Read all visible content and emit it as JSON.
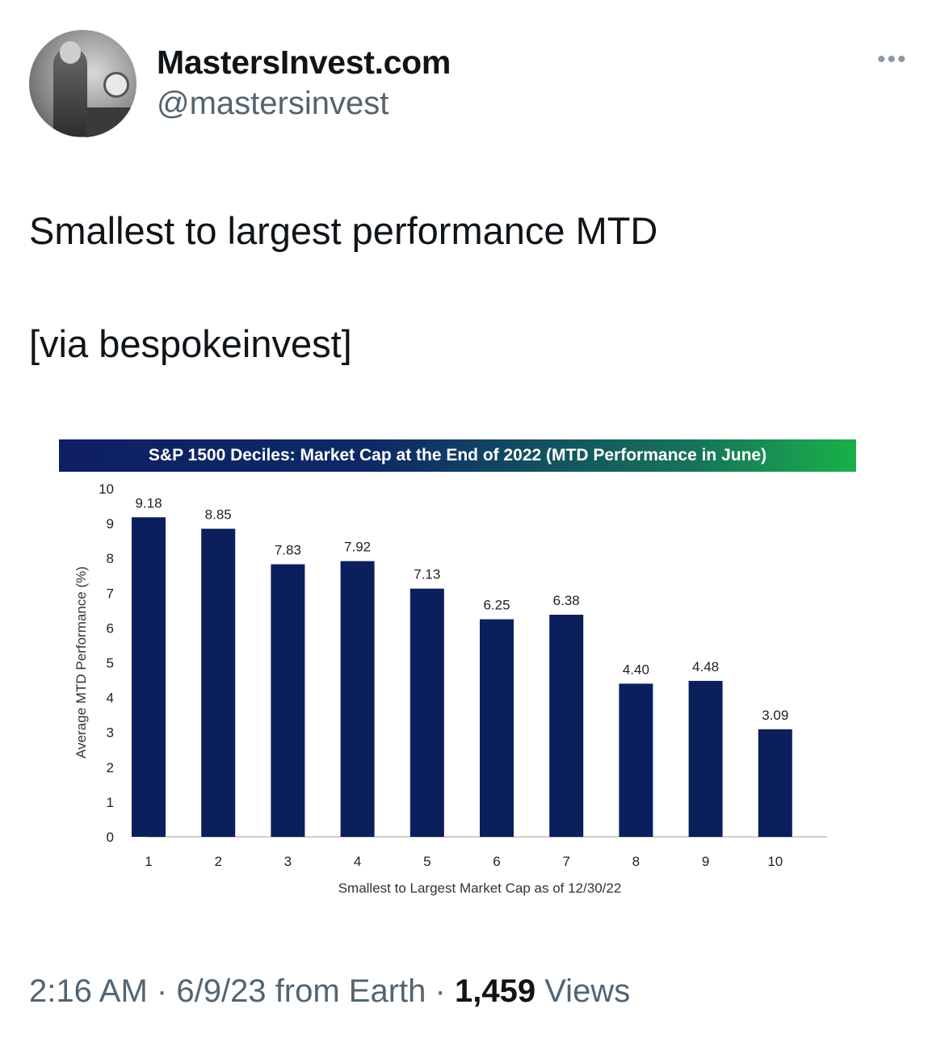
{
  "tweet": {
    "display_name": "MastersInvest.com",
    "handle": "@mastersinvest",
    "text": "Smallest to largest performance MTD\n\n[via bespokeinvest]",
    "time": "2:16 AM",
    "date": "6/9/23",
    "source": "from Earth",
    "separator": "·",
    "views_count": "1,459",
    "views_label": "Views",
    "more_icon": "more-horizontal-icon"
  },
  "chart_data": {
    "type": "bar",
    "title": "S&P 1500 Deciles: Market Cap at the End of 2022 (MTD Performance in June)",
    "xlabel": "Smallest to Largest Market Cap as of 12/30/22",
    "ylabel": "Average MTD Performance (%)",
    "categories": [
      "1",
      "2",
      "3",
      "4",
      "5",
      "6",
      "7",
      "8",
      "9",
      "10"
    ],
    "values": [
      9.18,
      8.85,
      7.83,
      7.92,
      7.13,
      6.25,
      6.38,
      4.4,
      4.48,
      3.09
    ],
    "data_labels": [
      "9.18",
      "8.85",
      "7.83",
      "7.92",
      "7.13",
      "6.25",
      "6.38",
      "4.40",
      "4.48",
      "3.09"
    ],
    "yticks": [
      "0",
      "1",
      "2",
      "3",
      "4",
      "5",
      "6",
      "7",
      "8",
      "9",
      "10"
    ],
    "ylim": [
      0,
      10
    ],
    "grid": false,
    "bar_color": "#0b1f5c"
  }
}
